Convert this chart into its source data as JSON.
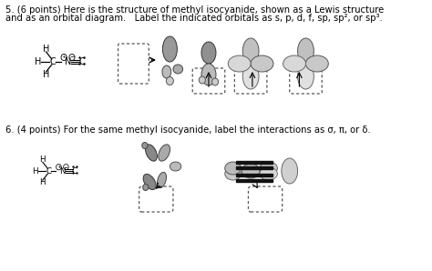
{
  "title_q5_line1": "5. (6 points) Here is the structure of methyl isocyanide, shown as a Lewis structure",
  "title_q5_line2": "and as an orbital diagram.   Label the indicated orbitals as s, p, d, f, sp, sp², or sp³.",
  "title_q6": "6. (4 points) For the same methyl isocyanide, label the interactions as σ, π, or δ.",
  "bg_color": "#ffffff",
  "text_color": "#000000",
  "font_size_title": 7.2,
  "font_size_lewis": 7.0,
  "lobe_gray1": "#888888",
  "lobe_gray2": "#aaaaaa",
  "lobe_gray3": "#cccccc",
  "lobe_gray4": "#e8e8e8",
  "lobe_edge": "#444444",
  "bar_color": "#111111",
  "dash_color": "#555555"
}
